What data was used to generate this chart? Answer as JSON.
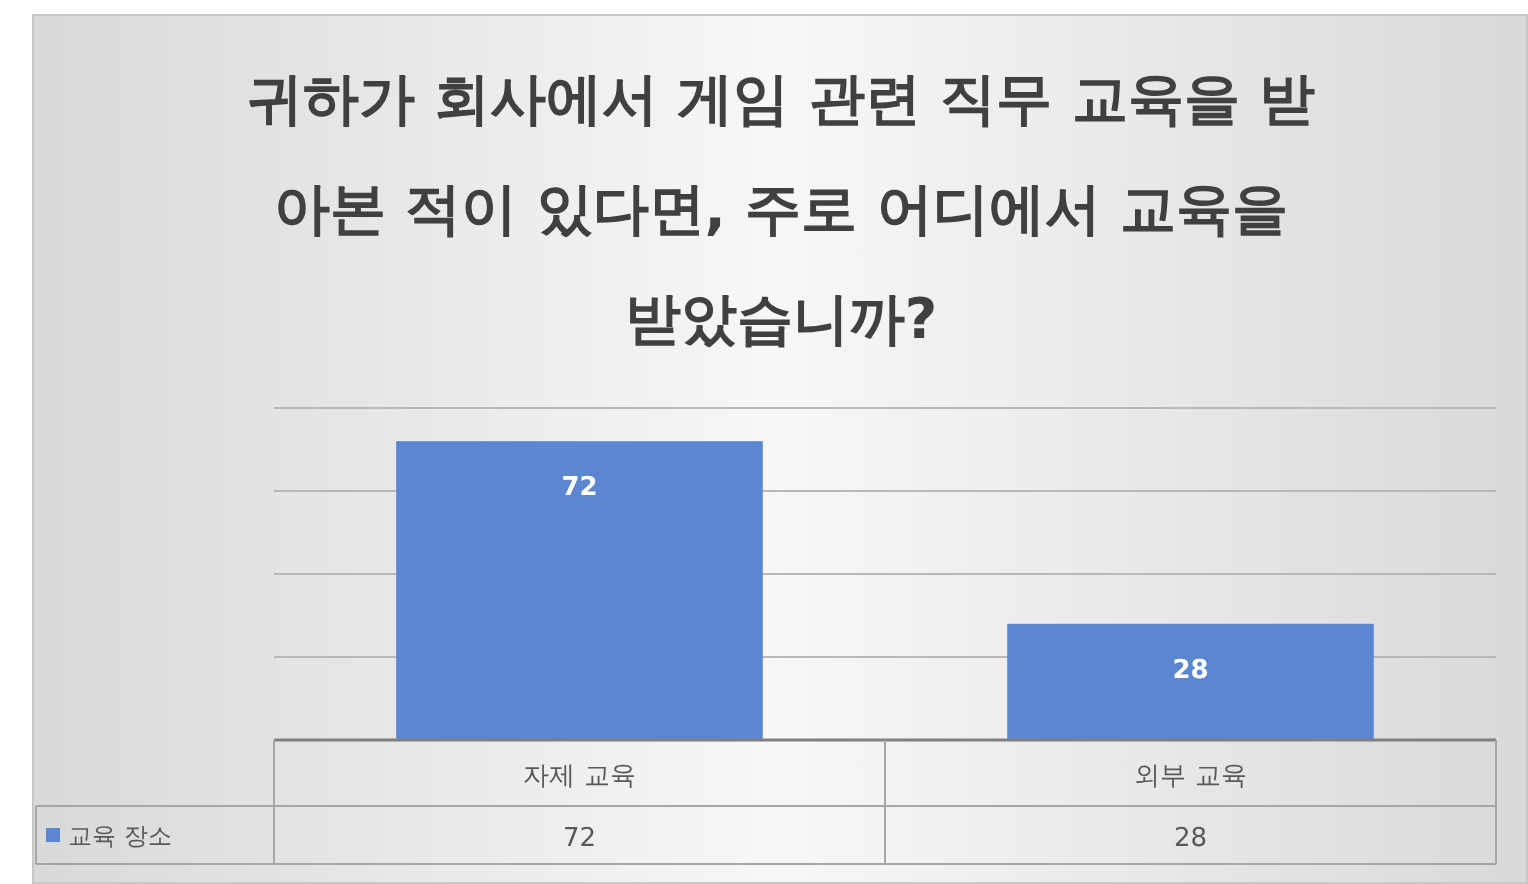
{
  "chart_data": {
    "type": "bar",
    "title": "귀하가 회사에서 게임 관련 직무 교육을 받아본 적이 있다면, 주로 어디에서 교육을 받았습니까?",
    "categories": [
      "자제 교육",
      "외부 교육"
    ],
    "series": [
      {
        "name": "교육 장소",
        "color": "#5b87d2",
        "values": [
          72,
          28
        ],
        "value_labels": [
          "72",
          "28"
        ]
      }
    ],
    "ylim": [
      0,
      80
    ],
    "yticks": [
      {
        "value": 0,
        "label": null
      },
      {
        "value": 20,
        "label": null
      },
      {
        "value": 40,
        "label": null
      },
      {
        "value": 60,
        "label": null
      },
      {
        "value": 80,
        "label": null
      }
    ],
    "grid": "y",
    "tick_labels": "x",
    "data_labels": true,
    "legend": "bottom"
  }
}
